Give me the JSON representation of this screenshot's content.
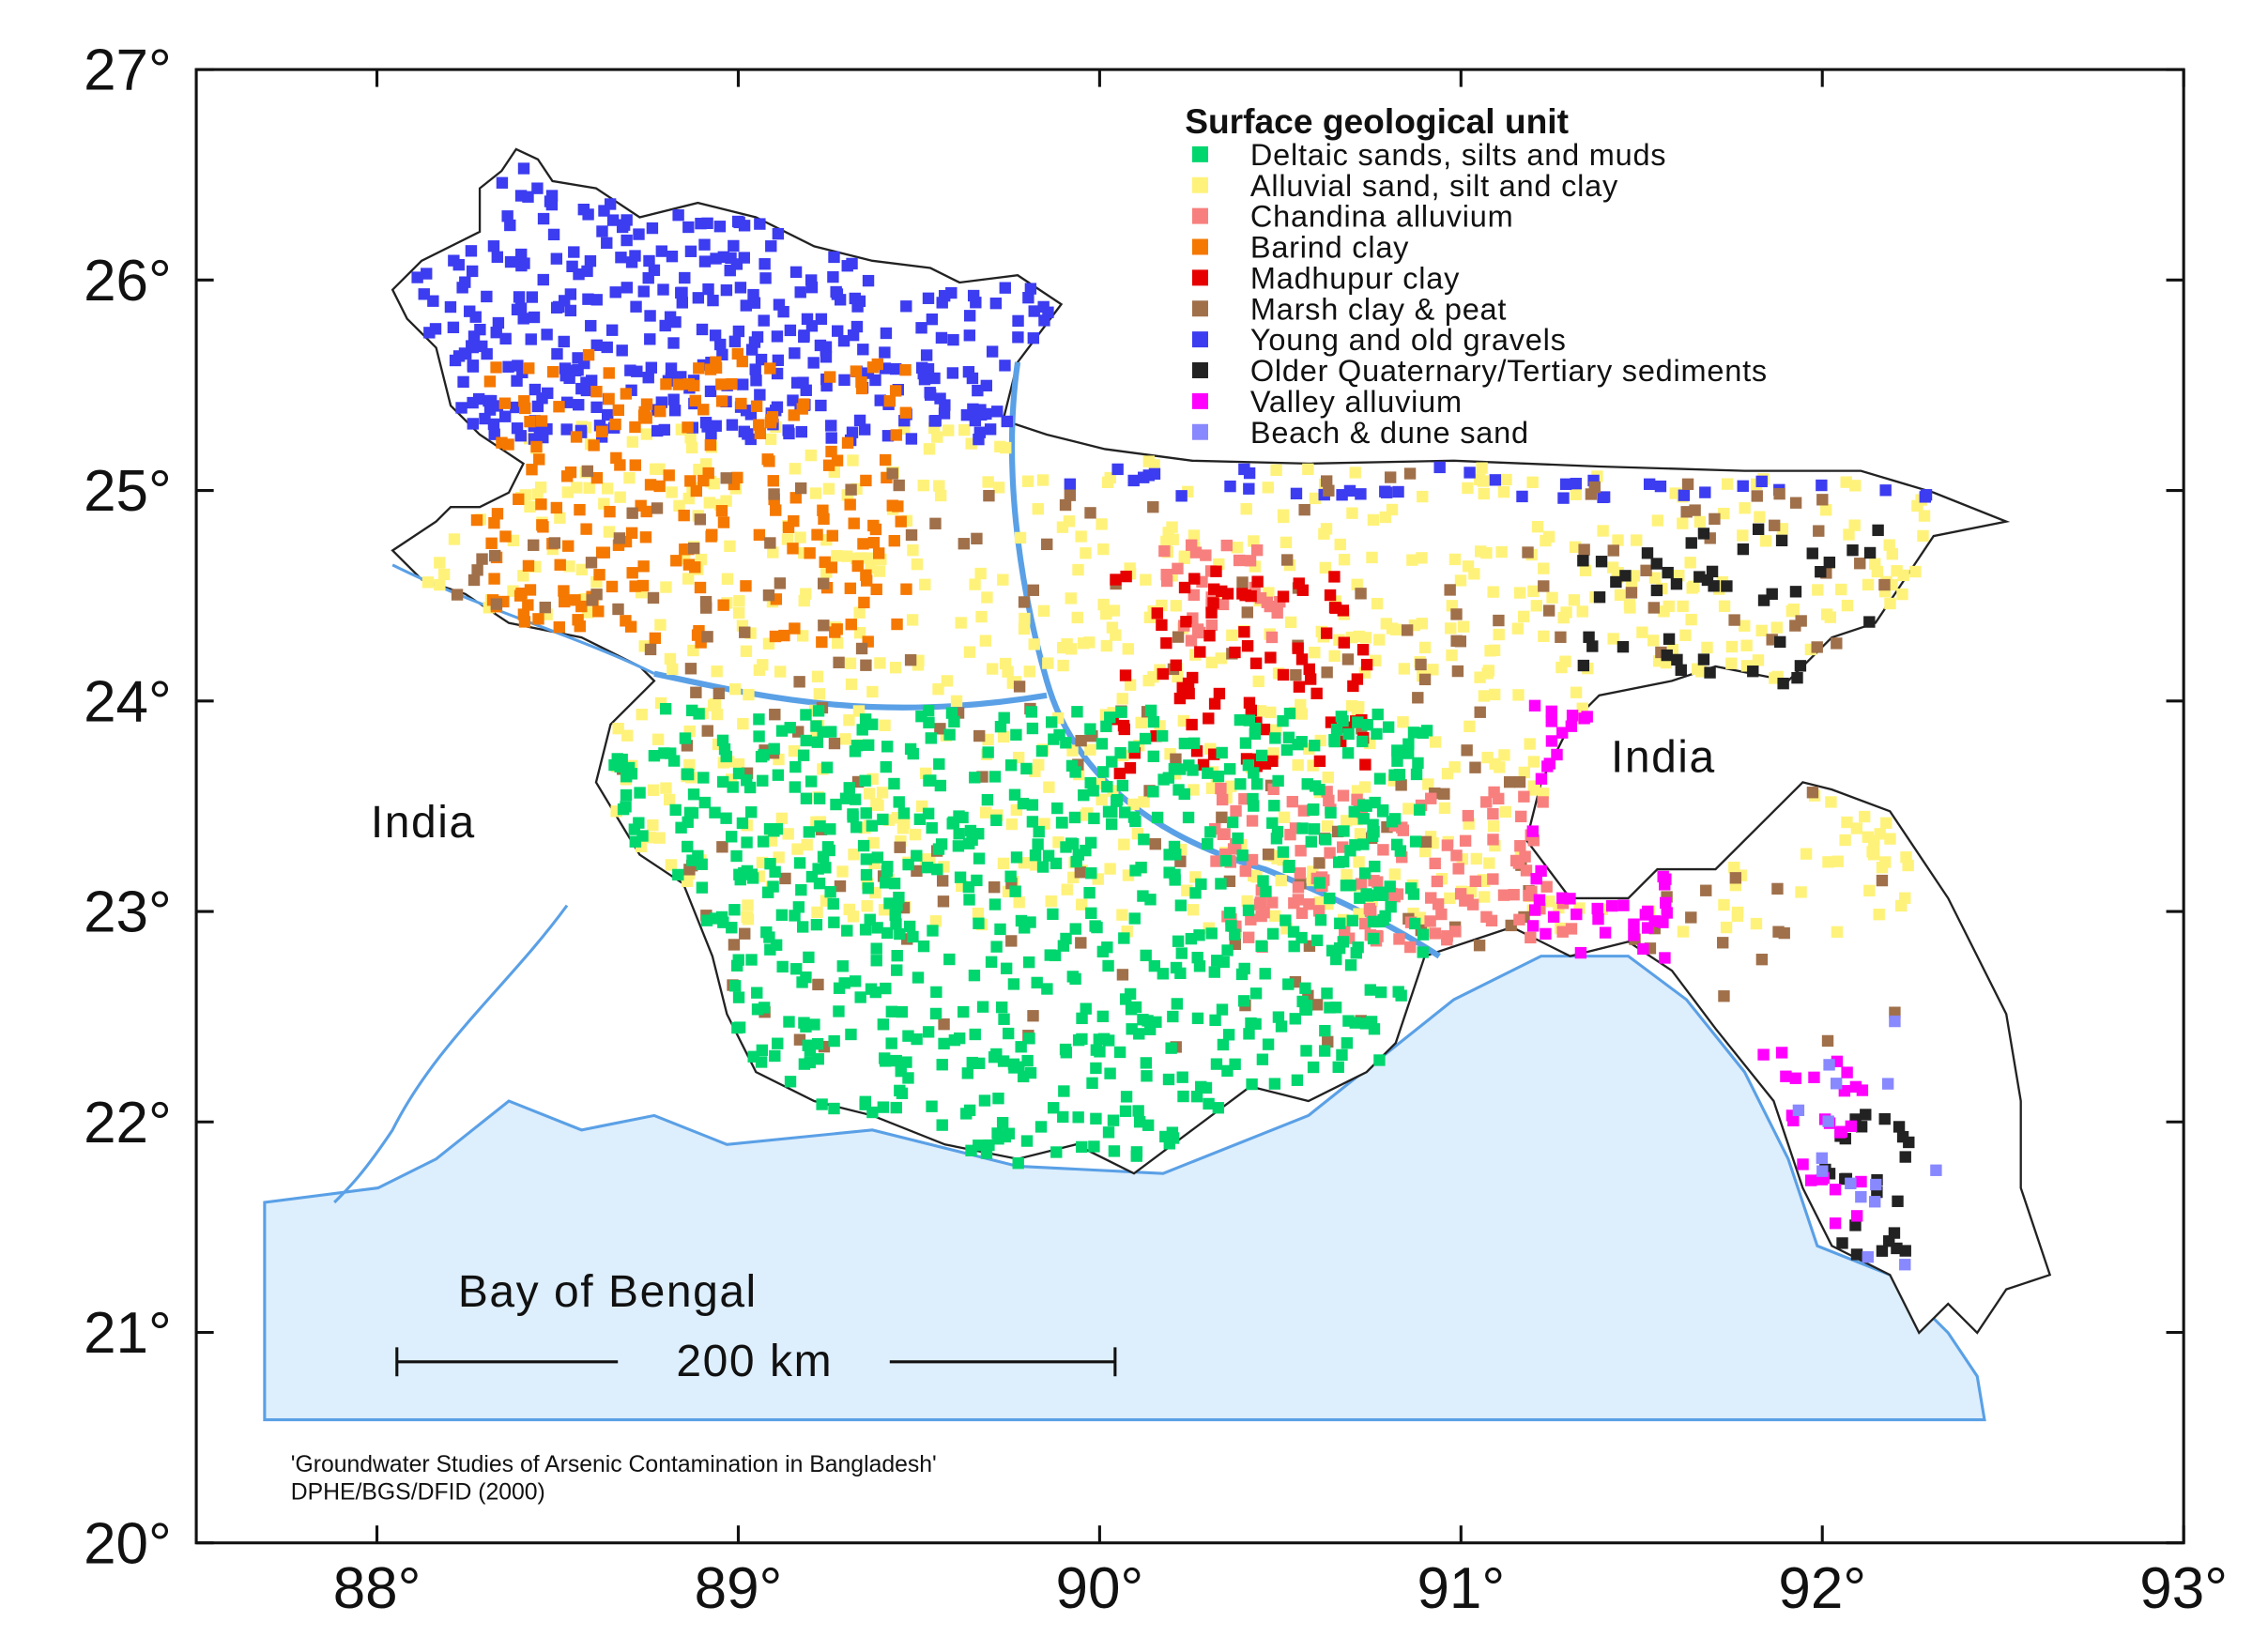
{
  "map": {
    "lon_range": [
      87.5,
      93
    ],
    "lat_range": [
      20,
      27
    ],
    "lat_ticks": [
      {
        "value": 20,
        "label": "20°"
      },
      {
        "value": 21,
        "label": "21°"
      },
      {
        "value": 22,
        "label": "22°"
      },
      {
        "value": 23,
        "label": "23°"
      },
      {
        "value": 24,
        "label": "24°"
      },
      {
        "value": 25,
        "label": "25°"
      },
      {
        "value": 26,
        "label": "26°"
      },
      {
        "value": 27,
        "label": "27°"
      }
    ],
    "lon_ticks": [
      {
        "value": 88,
        "label": "88°"
      },
      {
        "value": 89,
        "label": "89°"
      },
      {
        "value": 90,
        "label": "90°"
      },
      {
        "value": 91,
        "label": "91°"
      },
      {
        "value": 92,
        "label": "92°"
      },
      {
        "value": 93,
        "label": "93°"
      }
    ],
    "legend": {
      "title": "Surface geological unit",
      "items": [
        {
          "label": "Deltaic sands, silts and muds",
          "color": "#00d66e"
        },
        {
          "label": "Alluvial sand, silt and clay",
          "color": "#fff27a"
        },
        {
          "label": "Chandina alluvium",
          "color": "#f7807e"
        },
        {
          "label": "Barind clay",
          "color": "#f57800"
        },
        {
          "label": "Madhupur clay",
          "color": "#e60000"
        },
        {
          "label": "Marsh clay & peat",
          "color": "#a0704a"
        },
        {
          "label": "Young and old gravels",
          "color": "#3c3cf0"
        },
        {
          "label": "Older Quaternary/Tertiary sediments",
          "color": "#222222"
        },
        {
          "label": "Valley alluvium",
          "color": "#ff00ff"
        },
        {
          "label": "Beach & dune sand",
          "color": "#8888ff"
        }
      ]
    },
    "labels": {
      "india_west": "India",
      "india_east": "India",
      "bay": "Bay of Bengal",
      "scale_bar": "200 km"
    },
    "source": [
      "'Groundwater Studies of Arsenic Contamination in Bangladesh'",
      "DPHE/BGS/DFID (2000)"
    ]
  }
}
